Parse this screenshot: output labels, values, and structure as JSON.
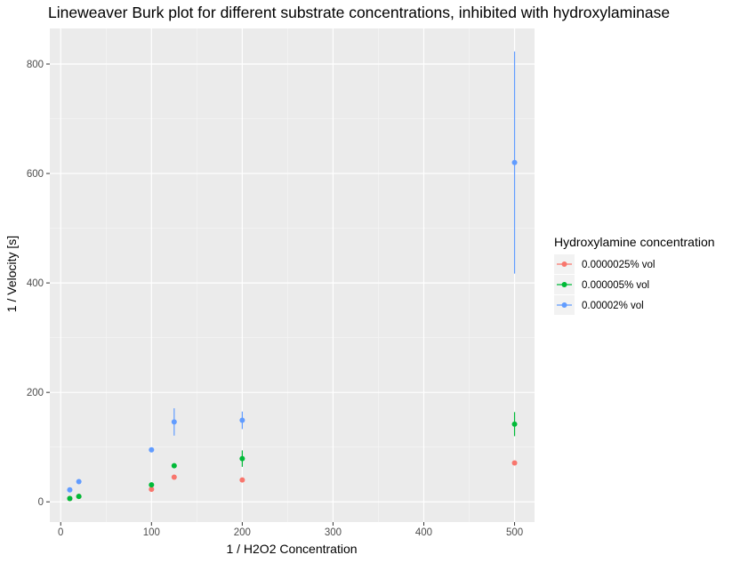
{
  "chart_data": {
    "type": "scatter",
    "title": "Lineweaver Burk plot for different substrate concentrations, inhibited with hydroxylaminase",
    "xlabel": "1 / H2O2 Concentration",
    "ylabel": "1 / Velocity [s]",
    "xlim": [
      -12,
      522
    ],
    "ylim": [
      -37,
      865
    ],
    "x_ticks": [
      0,
      100,
      200,
      300,
      400,
      500
    ],
    "y_ticks": [
      0,
      200,
      400,
      600,
      800
    ],
    "grid": true,
    "legend": {
      "title": "Hydroxylamine concentration",
      "position": "right"
    },
    "series": [
      {
        "name": "0.0000025% vol",
        "color": "#F8766D",
        "points": [
          {
            "x": 10,
            "y": 6
          },
          {
            "x": 20,
            "y": 10
          },
          {
            "x": 100,
            "y": 23
          },
          {
            "x": 125,
            "y": 45
          },
          {
            "x": 200,
            "y": 40
          },
          {
            "x": 500,
            "y": 71
          }
        ]
      },
      {
        "name": "0.000005% vol",
        "color": "#00BA38",
        "points": [
          {
            "x": 10,
            "y": 6
          },
          {
            "x": 20,
            "y": 10
          },
          {
            "x": 100,
            "y": 31
          },
          {
            "x": 125,
            "y": 66
          },
          {
            "x": 200,
            "y": 79,
            "err_low": 64,
            "err_high": 94
          },
          {
            "x": 500,
            "y": 142,
            "err_low": 120,
            "err_high": 164
          }
        ]
      },
      {
        "name": "0.00002% vol",
        "color": "#619CFF",
        "points": [
          {
            "x": 10,
            "y": 22
          },
          {
            "x": 20,
            "y": 37
          },
          {
            "x": 100,
            "y": 95
          },
          {
            "x": 125,
            "y": 146,
            "err_low": 121,
            "err_high": 171
          },
          {
            "x": 200,
            "y": 149,
            "err_low": 133,
            "err_high": 165
          },
          {
            "x": 500,
            "y": 620,
            "err_low": 417,
            "err_high": 823
          }
        ]
      }
    ]
  }
}
